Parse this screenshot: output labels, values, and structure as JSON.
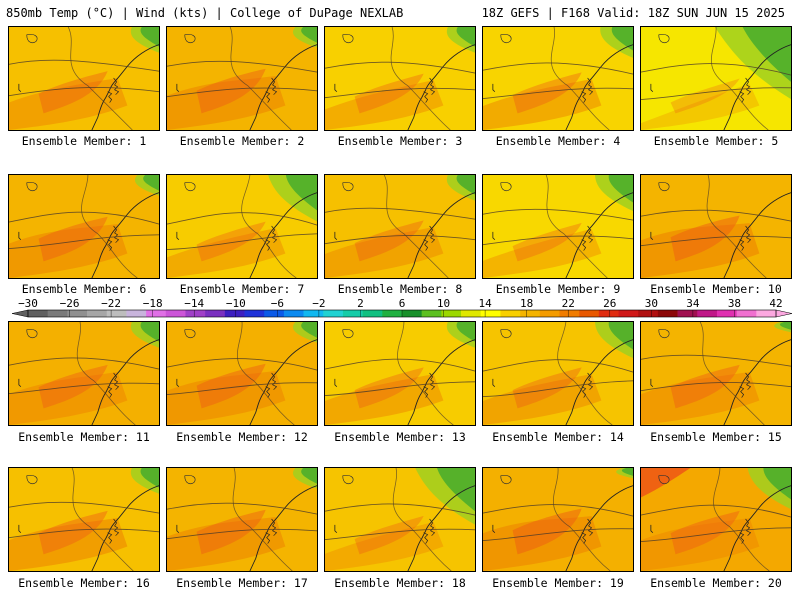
{
  "header": {
    "left": "850mb Temp (°C) | Wind (kts) | College of DuPage NEXLAB",
    "right": "18Z GEFS | F168 Valid: 18Z SUN JUN 15 2025"
  },
  "panels": [
    {
      "member": 1,
      "label": "Ensemble Member: 1",
      "bg": "#f6c000",
      "green": 0.25,
      "orange": 0.4,
      "red": 0.0
    },
    {
      "member": 2,
      "label": "Ensemble Member: 2",
      "bg": "#f4b400",
      "green": 0.2,
      "orange": 0.5,
      "red": 0.0
    },
    {
      "member": 3,
      "label": "Ensemble Member: 3",
      "bg": "#f8d000",
      "green": 0.25,
      "orange": 0.3,
      "red": 0.0
    },
    {
      "member": 4,
      "label": "Ensemble Member: 4",
      "bg": "#f8d400",
      "green": 0.3,
      "orange": 0.35,
      "red": 0.0
    },
    {
      "member": 5,
      "label": "Ensemble Member: 5",
      "bg": "#f6e600",
      "green": 0.7,
      "orange": 0.1,
      "red": 0.0
    },
    {
      "member": 6,
      "label": "Ensemble Member: 6",
      "bg": "#f4b400",
      "green": 0.2,
      "orange": 0.5,
      "red": 0.0
    },
    {
      "member": 7,
      "label": "Ensemble Member: 7",
      "bg": "#f7cc00",
      "green": 0.45,
      "orange": 0.3,
      "red": 0.0
    },
    {
      "member": 8,
      "label": "Ensemble Member: 8",
      "bg": "#f6c000",
      "green": 0.25,
      "orange": 0.35,
      "red": 0.0
    },
    {
      "member": 9,
      "label": "Ensemble Member: 9",
      "bg": "#f8d800",
      "green": 0.35,
      "orange": 0.25,
      "red": 0.0
    },
    {
      "member": 10,
      "label": "Ensemble Member: 10",
      "bg": "#f4b400",
      "green": 0.0,
      "orange": 0.55,
      "red": 0.0
    },
    {
      "member": 11,
      "label": "Ensemble Member: 11",
      "bg": "#f4b000",
      "green": 0.25,
      "orange": 0.45,
      "red": 0.0
    },
    {
      "member": 12,
      "label": "Ensemble Member: 12",
      "bg": "#f4b000",
      "green": 0.2,
      "orange": 0.5,
      "red": 0.0
    },
    {
      "member": 13,
      "label": "Ensemble Member: 13",
      "bg": "#f7cc00",
      "green": 0.25,
      "orange": 0.35,
      "red": 0.0
    },
    {
      "member": 14,
      "label": "Ensemble Member: 14",
      "bg": "#f6c400",
      "green": 0.35,
      "orange": 0.35,
      "red": 0.0
    },
    {
      "member": 15,
      "label": "Ensemble Member: 15",
      "bg": "#f4b400",
      "green": 0.1,
      "orange": 0.45,
      "red": 0.0
    },
    {
      "member": 16,
      "label": "Ensemble Member: 16",
      "bg": "#f6c000",
      "green": 0.25,
      "orange": 0.45,
      "red": 0.0
    },
    {
      "member": 17,
      "label": "Ensemble Member: 17",
      "bg": "#f4b400",
      "green": 0.2,
      "orange": 0.5,
      "red": 0.0
    },
    {
      "member": 18,
      "label": "Ensemble Member: 18",
      "bg": "#f6c400",
      "green": 0.55,
      "orange": 0.25,
      "red": 0.0
    },
    {
      "member": 19,
      "label": "Ensemble Member: 19",
      "bg": "#f4b000",
      "green": 0.1,
      "orange": 0.55,
      "red": 0.0
    },
    {
      "member": 20,
      "label": "Ensemble Member: 20",
      "bg": "#f4a800",
      "green": 0.4,
      "orange": 0.45,
      "red": 0.25
    }
  ],
  "colorbar": {
    "labels": [
      "-30",
      "-26",
      "-22",
      "-18",
      "-14",
      "-10",
      "-6",
      "-2",
      "2",
      "6",
      "10",
      "14",
      "18",
      "22",
      "26",
      "30",
      "34",
      "38",
      "42"
    ],
    "colors": [
      "#606060",
      "#7a7a7a",
      "#909090",
      "#a6a6a6",
      "#bdbdbd",
      "#c8b4dc",
      "#e070e6",
      "#cc55d8",
      "#a040c8",
      "#7a30c0",
      "#3c1ec0",
      "#1e32d8",
      "#0a5ae8",
      "#0a8af0",
      "#10b8f0",
      "#20d2d2",
      "#14cca8",
      "#10c080",
      "#20b040",
      "#18902a",
      "#5cc020",
      "#9cd800",
      "#e0e800",
      "#ffff00",
      "#f8d000",
      "#f4b400",
      "#f49c00",
      "#f07c00",
      "#e85800",
      "#e02c10",
      "#d01818",
      "#b01010",
      "#8c0808",
      "#a01050",
      "#c01888",
      "#e030b0",
      "#f070d0",
      "#fca8e0"
    ]
  },
  "palette": {
    "green": "#4cae2c",
    "light_green": "#a0d020",
    "orange": "#ef9000",
    "red": "#ee5a14"
  }
}
